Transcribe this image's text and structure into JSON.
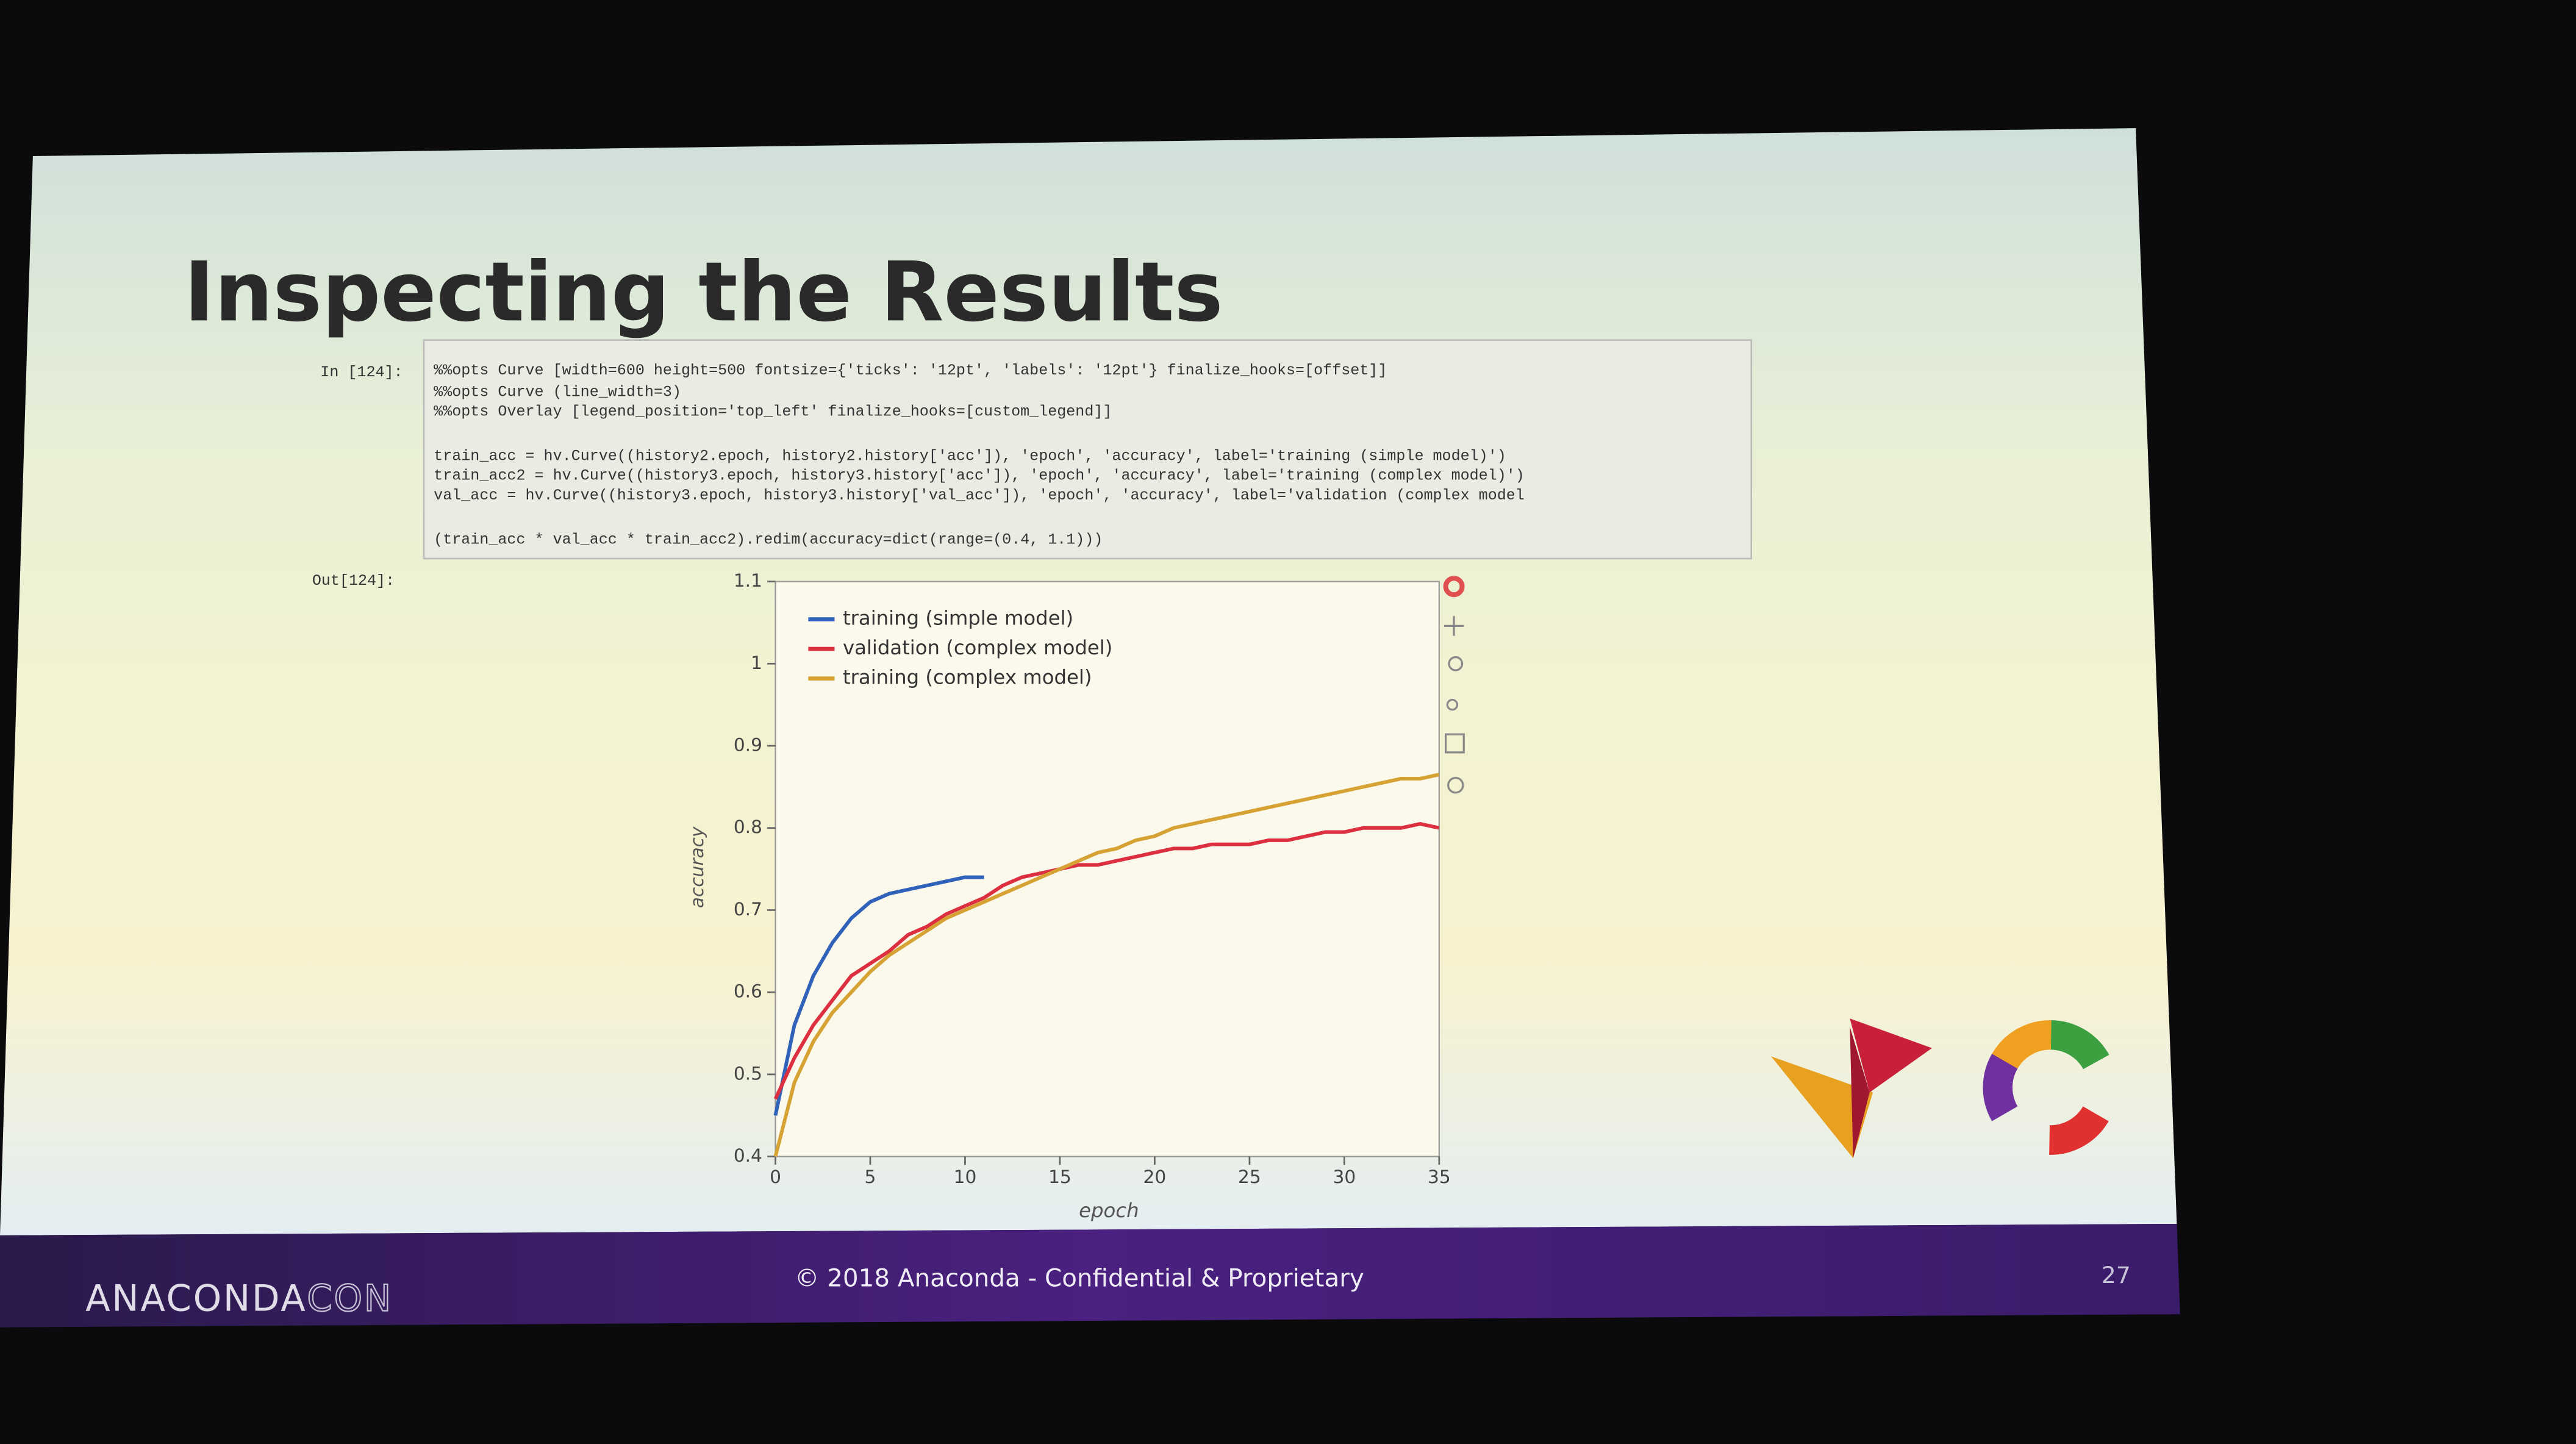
{
  "slide": {
    "title": "Inspecting the Results",
    "page_number": "27",
    "footer": {
      "brand": "ANACONDA",
      "brand_suffix": "CON",
      "notice": "© 2018 Anaconda - Confidential & Proprietary"
    }
  },
  "notebook": {
    "in_prompt": "In [124]:",
    "out_prompt": "Out[124]:",
    "code": [
      "%%opts Curve [width=600 height=500 fontsize={'ticks': '12pt', 'labels': '12pt'} finalize_hooks=[offset]]",
      "%%opts Curve (line_width=3)",
      "%%opts Overlay [legend_position='top_left' finalize_hooks=[custom_legend]]",
      "train_acc = hv.Curve((history2.epoch, history2.history['acc']), 'epoch', 'accuracy', label='training (simple model)')",
      "train_acc2 = hv.Curve((history3.epoch, history3.history['acc']), 'epoch', 'accuracy', label='training (complex model)')",
      "val_acc = hv.Curve((history3.epoch, history3.history['val_acc']), 'epoch', 'accuracy', label='validation (complex model",
      "(train_acc * val_acc * train_acc2).redim(accuracy=dict(range=(0.4, 1.1)))"
    ]
  },
  "chart_data": {
    "type": "line",
    "x_label": "epoch",
    "y_label": "accuracy",
    "xlim": [
      0,
      35
    ],
    "xticks": [
      0,
      5,
      10,
      15,
      20,
      25,
      30,
      35
    ],
    "ylim": [
      0.4,
      1.1
    ],
    "yticks": [
      0.4,
      0.5,
      0.6,
      0.7,
      0.8,
      0.9,
      1,
      1.1
    ],
    "legend": "top-left",
    "grid": false,
    "series": [
      {
        "name": "training (simple model)",
        "color": "#2f62b8",
        "x": [
          0,
          1,
          2,
          3,
          4,
          5,
          6,
          7,
          8,
          9,
          10,
          11
        ],
        "values": [
          0.45,
          0.56,
          0.62,
          0.66,
          0.69,
          0.71,
          0.72,
          0.725,
          0.73,
          0.735,
          0.74,
          0.74
        ]
      },
      {
        "name": "validation (complex model)",
        "color": "#dc3040",
        "x": [
          0,
          1,
          2,
          3,
          4,
          5,
          6,
          7,
          8,
          9,
          10,
          11,
          12,
          13,
          14,
          15,
          16,
          17,
          18,
          19,
          20,
          21,
          22,
          23,
          24,
          25,
          26,
          27,
          28,
          29,
          30,
          31,
          32,
          33,
          34,
          35
        ],
        "values": [
          0.47,
          0.52,
          0.56,
          0.59,
          0.62,
          0.635,
          0.65,
          0.67,
          0.68,
          0.695,
          0.705,
          0.715,
          0.73,
          0.74,
          0.745,
          0.75,
          0.755,
          0.755,
          0.76,
          0.765,
          0.77,
          0.775,
          0.775,
          0.78,
          0.78,
          0.78,
          0.785,
          0.785,
          0.79,
          0.795,
          0.795,
          0.8,
          0.8,
          0.8,
          0.805,
          0.8
        ]
      },
      {
        "name": "training (complex model)",
        "color": "#d6a234",
        "x": [
          0,
          1,
          2,
          3,
          4,
          5,
          6,
          7,
          8,
          9,
          10,
          11,
          12,
          13,
          14,
          15,
          16,
          17,
          18,
          19,
          20,
          21,
          22,
          23,
          24,
          25,
          26,
          27,
          28,
          29,
          30,
          31,
          32,
          33,
          34,
          35
        ],
        "values": [
          0.4,
          0.49,
          0.54,
          0.575,
          0.6,
          0.625,
          0.645,
          0.66,
          0.675,
          0.69,
          0.7,
          0.71,
          0.72,
          0.73,
          0.74,
          0.75,
          0.76,
          0.77,
          0.775,
          0.785,
          0.79,
          0.8,
          0.805,
          0.81,
          0.815,
          0.82,
          0.825,
          0.83,
          0.835,
          0.84,
          0.845,
          0.85,
          0.855,
          0.86,
          0.86,
          0.865
        ]
      }
    ]
  }
}
